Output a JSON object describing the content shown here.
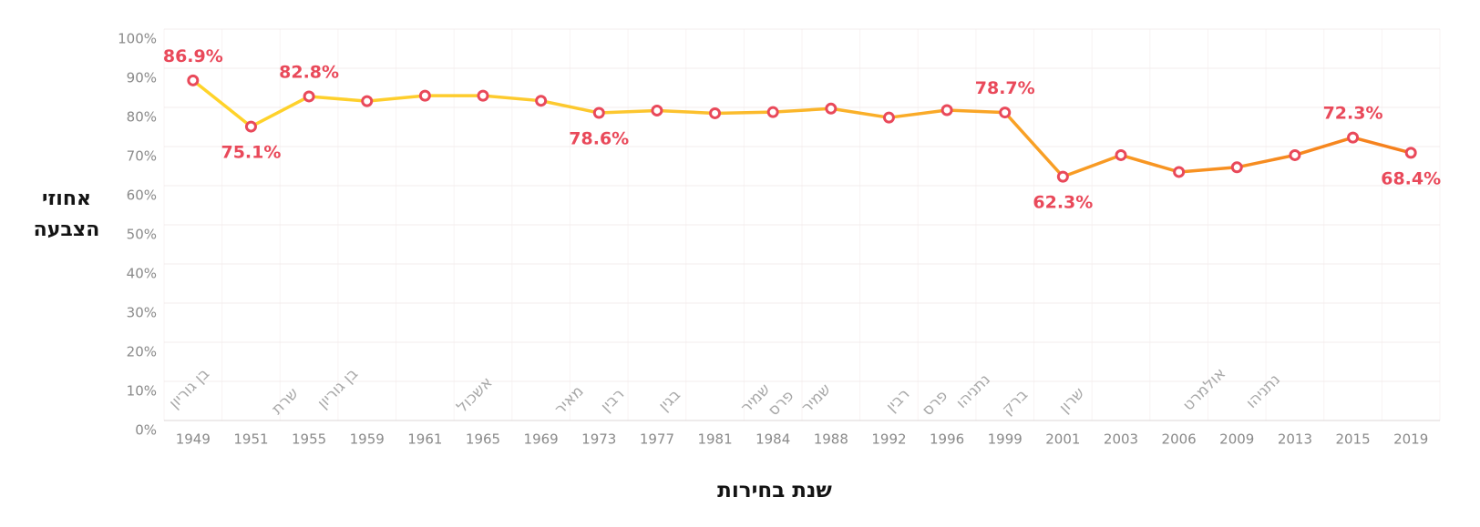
{
  "page": {
    "background": "#ffffff"
  },
  "chart_data": {
    "type": "line",
    "title": "",
    "x_axis_title": "שנת בחירות",
    "y_axis_title": "אחוזי הצבעה",
    "y_axis_title_lines": [
      "אחוזי",
      "הצבעה"
    ],
    "categories": [
      "1949",
      "1951",
      "1955",
      "1959",
      "1961",
      "1965",
      "1969",
      "1973",
      "1977",
      "1981",
      "1984",
      "1988",
      "1992",
      "1996",
      "1999",
      "2001",
      "2003",
      "2006",
      "2009",
      "2013",
      "2015",
      "2019"
    ],
    "series": [
      {
        "name": "אחוזי הצבעה",
        "values": [
          86.9,
          75.1,
          82.8,
          81.6,
          83.0,
          83.0,
          81.7,
          78.6,
          79.2,
          78.5,
          78.8,
          79.7,
          77.4,
          79.3,
          78.7,
          62.3,
          67.8,
          63.5,
          64.7,
          67.8,
          72.3,
          68.4
        ]
      }
    ],
    "point_labels": [
      {
        "category": "1949",
        "text": "86.9%",
        "placement": "above"
      },
      {
        "category": "1951",
        "text": "75.1%",
        "placement": "below"
      },
      {
        "category": "1955",
        "text": "82.8%",
        "placement": "above"
      },
      {
        "category": "1973",
        "text": "78.6%",
        "placement": "below"
      },
      {
        "category": "1999",
        "text": "78.7%",
        "placement": "above"
      },
      {
        "category": "2001",
        "text": "62.3%",
        "placement": "below"
      },
      {
        "category": "2015",
        "text": "72.3%",
        "placement": "above"
      },
      {
        "category": "2019",
        "text": "68.4%",
        "placement": "below"
      }
    ],
    "pm_annotations": [
      {
        "name": "בן גוריון",
        "category": "1949"
      },
      {
        "name": "שרת",
        "category": "1955"
      },
      {
        "name": "בן גוריון",
        "category": "1959"
      },
      {
        "name": "אשכול",
        "category": "1965"
      },
      {
        "name": "מאיר",
        "category": "1969"
      },
      {
        "name": "רבין",
        "category": "1973"
      },
      {
        "name": "בגין",
        "category": "1977"
      },
      {
        "name": "שמיר",
        "category": "1984"
      },
      {
        "name": "פרס",
        "category": "1984"
      },
      {
        "name": "שמיר",
        "category": "1988"
      },
      {
        "name": "רבין",
        "category": "1992"
      },
      {
        "name": "פרס",
        "category": "1996"
      },
      {
        "name": "נתניהו",
        "category": "1996"
      },
      {
        "name": "ברק",
        "category": "1999"
      },
      {
        "name": "שרון",
        "category": "2001"
      },
      {
        "name": "אולמרט",
        "category": "2006"
      },
      {
        "name": "נתניהו",
        "category": "2009"
      }
    ],
    "y_ticks": [
      "0%",
      "10%",
      "20%",
      "30%",
      "40%",
      "50%",
      "60%",
      "70%",
      "80%",
      "90%",
      "100%"
    ],
    "ylim": [
      0,
      100
    ],
    "grid": true,
    "legend": "none",
    "colors": {
      "line_gradient_start": "#FFD42A",
      "line_gradient_mid1": "#FCC72F",
      "line_gradient_mid2": "#F9A426",
      "line_gradient_end": "#F57F1D",
      "marker_stroke": "#E9495A",
      "marker_fill": "#FFFFFF",
      "point_label": "#E9495A",
      "tick_label": "#8A8A8A",
      "annotation": "#A8A8A8",
      "axis_title": "#141414",
      "grid_line_h": "#F3ECEC",
      "grid_line_v": "#F8F3F3",
      "axis_line": "#DED7D7"
    }
  }
}
